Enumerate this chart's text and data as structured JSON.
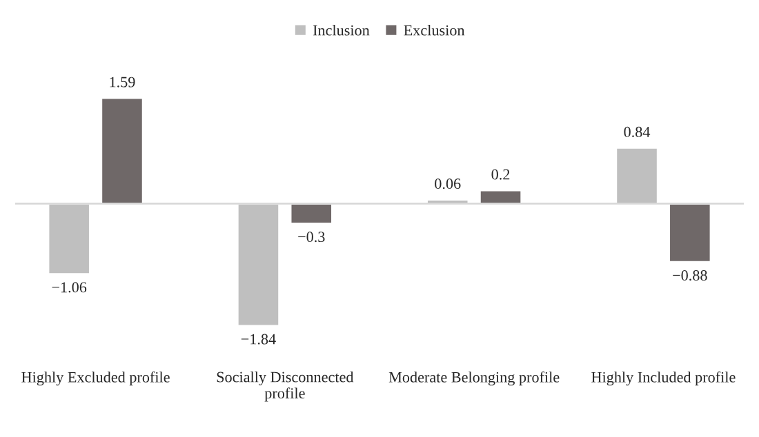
{
  "chart_data": {
    "type": "bar",
    "categories": [
      "Highly Excluded profile",
      "Socially Disconnected\nprofile",
      "Moderate Belonging profile",
      "Highly Included profile"
    ],
    "series": [
      {
        "name": "Inclusion",
        "color": "#bfbfbf",
        "values": [
          -1.06,
          -1.84,
          0.06,
          0.84
        ]
      },
      {
        "name": "Exclusion",
        "color": "#6f6868",
        "values": [
          1.59,
          -0.3,
          0.2,
          -0.88
        ]
      }
    ],
    "data_labels": true,
    "legend": "top",
    "grid": false
  }
}
